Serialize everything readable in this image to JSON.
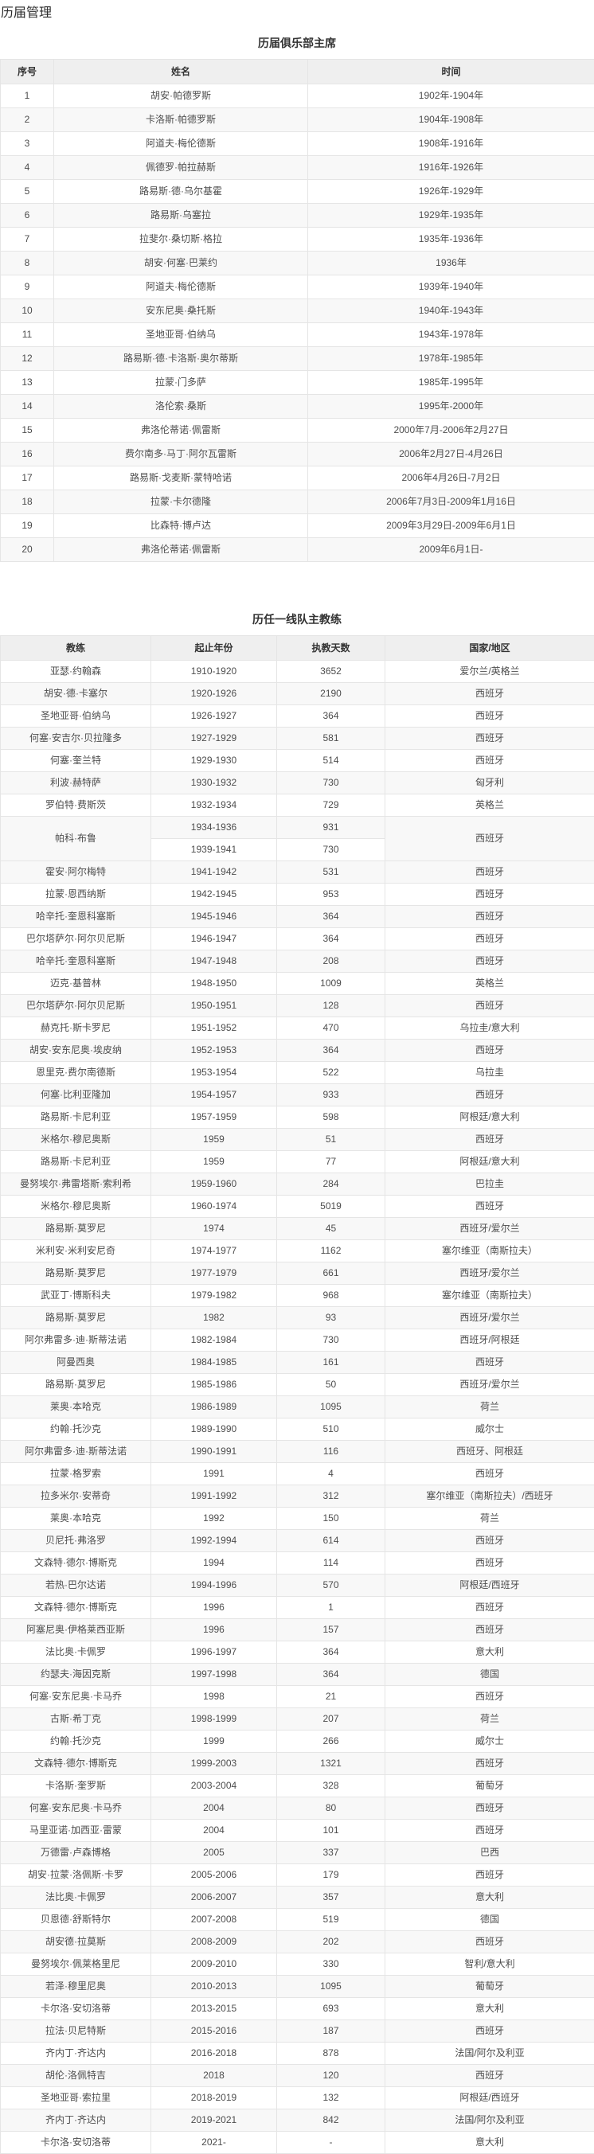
{
  "page_title": "历届管理",
  "presidents": {
    "caption": "历届俱乐部主席",
    "headers": [
      "序号",
      "姓名",
      "时间"
    ],
    "rows": [
      [
        "1",
        "胡安·帕德罗斯",
        "1902年-1904年"
      ],
      [
        "2",
        "卡洛斯·帕德罗斯",
        "1904年-1908年"
      ],
      [
        "3",
        "阿道夫·梅伦德斯",
        "1908年-1916年"
      ],
      [
        "4",
        "佩德罗·帕拉赫斯",
        "1916年-1926年"
      ],
      [
        "5",
        "路易斯·德·乌尔基霍",
        "1926年-1929年"
      ],
      [
        "6",
        "路易斯·乌塞拉",
        "1929年-1935年"
      ],
      [
        "7",
        "拉斐尔·桑切斯·格拉",
        "1935年-1936年"
      ],
      [
        "8",
        "胡安·何塞·巴莱约",
        "1936年"
      ],
      [
        "9",
        "阿道夫·梅伦德斯",
        "1939年-1940年"
      ],
      [
        "10",
        "安东尼奥·桑托斯",
        "1940年-1943年"
      ],
      [
        "11",
        "圣地亚哥·伯纳乌",
        "1943年-1978年"
      ],
      [
        "12",
        "路易斯·德·卡洛斯·奥尔蒂斯",
        "1978年-1985年"
      ],
      [
        "13",
        "拉蒙·门多萨",
        "1985年-1995年"
      ],
      [
        "14",
        "洛伦索·桑斯",
        "1995年-2000年"
      ],
      [
        "15",
        "弗洛伦蒂诺·佩雷斯",
        "2000年7月-2006年2月27日"
      ],
      [
        "16",
        "费尔南多·马丁·阿尔瓦雷斯",
        "2006年2月27日-4月26日"
      ],
      [
        "17",
        "路易斯·戈麦斯·蒙特哈诺",
        "2006年4月26日-7月2日"
      ],
      [
        "18",
        "拉蒙·卡尔德隆",
        "2006年7月3日-2009年1月16日"
      ],
      [
        "19",
        "比森特·博卢达",
        "2009年3月29日-2009年6月1日"
      ],
      [
        "20",
        "弗洛伦蒂诺·佩雷斯",
        "2009年6月1日-"
      ]
    ]
  },
  "coaches": {
    "caption": "历任一线队主教练",
    "headers": [
      "教练",
      "起止年份",
      "执教天数",
      "国家/地区"
    ],
    "rows": [
      {
        "name": "亚瑟·约翰森",
        "terms": [
          [
            "1910-1920",
            "3652"
          ]
        ],
        "country": "爱尔兰/英格兰"
      },
      {
        "name": "胡安·德·卡塞尔",
        "terms": [
          [
            "1920-1926",
            "2190"
          ]
        ],
        "country": "西班牙"
      },
      {
        "name": "圣地亚哥·伯纳乌",
        "terms": [
          [
            "1926-1927",
            "364"
          ]
        ],
        "country": "西班牙"
      },
      {
        "name": "何塞·安吉尔·贝拉隆多",
        "terms": [
          [
            "1927-1929",
            "581"
          ]
        ],
        "country": "西班牙"
      },
      {
        "name": "何塞·奎兰特",
        "terms": [
          [
            "1929-1930",
            "514"
          ]
        ],
        "country": "西班牙"
      },
      {
        "name": "利波·赫特萨",
        "terms": [
          [
            "1930-1932",
            "730"
          ]
        ],
        "country": "匈牙利"
      },
      {
        "name": "罗伯特·费斯茨",
        "terms": [
          [
            "1932-1934",
            "729"
          ]
        ],
        "country": "英格兰"
      },
      {
        "name": "帕科·布鲁",
        "terms": [
          [
            "1934-1936",
            "931"
          ],
          [
            "1939-1941",
            "730"
          ]
        ],
        "country": "西班牙"
      },
      {
        "name": "霍安·阿尔梅特",
        "terms": [
          [
            "1941-1942",
            "531"
          ]
        ],
        "country": "西班牙"
      },
      {
        "name": "拉蒙·恩西纳斯",
        "terms": [
          [
            "1942-1945",
            "953"
          ]
        ],
        "country": "西班牙"
      },
      {
        "name": "哈辛托·奎恩科塞斯",
        "terms": [
          [
            "1945-1946",
            "364"
          ]
        ],
        "country": "西班牙"
      },
      {
        "name": "巴尔塔萨尔·阿尔贝尼斯",
        "terms": [
          [
            "1946-1947",
            "364"
          ]
        ],
        "country": "西班牙"
      },
      {
        "name": "哈辛托·奎恩科塞斯",
        "terms": [
          [
            "1947-1948",
            "208"
          ]
        ],
        "country": "西班牙"
      },
      {
        "name": "迈克·基普林",
        "terms": [
          [
            "1948-1950",
            "1009"
          ]
        ],
        "country": "英格兰"
      },
      {
        "name": "巴尔塔萨尔·阿尔贝尼斯",
        "terms": [
          [
            "1950-1951",
            "128"
          ]
        ],
        "country": "西班牙"
      },
      {
        "name": "赫克托·斯卡罗尼",
        "terms": [
          [
            "1951-1952",
            "470"
          ]
        ],
        "country": "乌拉圭/意大利"
      },
      {
        "name": "胡安·安东尼奥·埃皮纳",
        "terms": [
          [
            "1952-1953",
            "364"
          ]
        ],
        "country": "西班牙"
      },
      {
        "name": "恩里克·费尔南德斯",
        "terms": [
          [
            "1953-1954",
            "522"
          ]
        ],
        "country": "乌拉圭"
      },
      {
        "name": "何塞·比利亚隆加",
        "terms": [
          [
            "1954-1957",
            "933"
          ]
        ],
        "country": "西班牙"
      },
      {
        "name": "路易斯·卡尼利亚",
        "terms": [
          [
            "1957-1959",
            "598"
          ]
        ],
        "country": "阿根廷/意大利"
      },
      {
        "name": "米格尔·穆尼奥斯",
        "terms": [
          [
            "1959",
            "51"
          ]
        ],
        "country": "西班牙"
      },
      {
        "name": "路易斯·卡尼利亚",
        "terms": [
          [
            "1959",
            "77"
          ]
        ],
        "country": "阿根廷/意大利"
      },
      {
        "name": "曼努埃尔·弗雷塔斯·索利希",
        "terms": [
          [
            "1959-1960",
            "284"
          ]
        ],
        "country": "巴拉圭"
      },
      {
        "name": "米格尔·穆尼奥斯",
        "terms": [
          [
            "1960-1974",
            "5019"
          ]
        ],
        "country": "西班牙"
      },
      {
        "name": "路易斯·莫罗尼",
        "terms": [
          [
            "1974",
            "45"
          ]
        ],
        "country": "西班牙/爱尔兰"
      },
      {
        "name": "米利安·米利安尼奇",
        "terms": [
          [
            "1974-1977",
            "1162"
          ]
        ],
        "country": "塞尔维亚（南斯拉夫）"
      },
      {
        "name": "路易斯·莫罗尼",
        "terms": [
          [
            "1977-1979",
            "661"
          ]
        ],
        "country": "西班牙/爱尔兰"
      },
      {
        "name": "武亚丁·博斯科夫",
        "terms": [
          [
            "1979-1982",
            "968"
          ]
        ],
        "country": "塞尔维亚（南斯拉夫）"
      },
      {
        "name": "路易斯·莫罗尼",
        "terms": [
          [
            "1982",
            "93"
          ]
        ],
        "country": "西班牙/爱尔兰"
      },
      {
        "name": "阿尔弗雷多·迪·斯蒂法诺",
        "terms": [
          [
            "1982-1984",
            "730"
          ]
        ],
        "country": "西班牙/阿根廷"
      },
      {
        "name": "阿曼西奥",
        "terms": [
          [
            "1984-1985",
            "161"
          ]
        ],
        "country": "西班牙"
      },
      {
        "name": "路易斯·莫罗尼",
        "terms": [
          [
            "1985-1986",
            "50"
          ]
        ],
        "country": "西班牙/爱尔兰"
      },
      {
        "name": "莱奥·本哈克",
        "terms": [
          [
            "1986-1989",
            "1095"
          ]
        ],
        "country": "荷兰"
      },
      {
        "name": "约翰·托沙克",
        "terms": [
          [
            "1989-1990",
            "510"
          ]
        ],
        "country": "威尔士"
      },
      {
        "name": "阿尔弗雷多·迪·斯蒂法诺",
        "terms": [
          [
            "1990-1991",
            "116"
          ]
        ],
        "country": "西班牙、阿根廷"
      },
      {
        "name": "拉蒙·格罗索",
        "terms": [
          [
            "1991",
            "4"
          ]
        ],
        "country": "西班牙"
      },
      {
        "name": "拉多米尔·安蒂奇",
        "terms": [
          [
            "1991-1992",
            "312"
          ]
        ],
        "country": "塞尔维亚（南斯拉夫）/西班牙"
      },
      {
        "name": "莱奥·本哈克",
        "terms": [
          [
            "1992",
            "150"
          ]
        ],
        "country": "荷兰"
      },
      {
        "name": "贝尼托·弗洛罗",
        "terms": [
          [
            "1992-1994",
            "614"
          ]
        ],
        "country": "西班牙"
      },
      {
        "name": "文森特·德尔·博斯克",
        "terms": [
          [
            "1994",
            "114"
          ]
        ],
        "country": "西班牙"
      },
      {
        "name": "若热·巴尔达诺",
        "terms": [
          [
            "1994-1996",
            "570"
          ]
        ],
        "country": "阿根廷/西班牙"
      },
      {
        "name": "文森特·德尔·博斯克",
        "terms": [
          [
            "1996",
            "1"
          ]
        ],
        "country": "西班牙"
      },
      {
        "name": "阿塞尼奥·伊格莱西亚斯",
        "terms": [
          [
            "1996",
            "157"
          ]
        ],
        "country": "西班牙"
      },
      {
        "name": "法比奥·卡佩罗",
        "terms": [
          [
            "1996-1997",
            "364"
          ]
        ],
        "country": "意大利"
      },
      {
        "name": "约瑟夫·海因克斯",
        "terms": [
          [
            "1997-1998",
            "364"
          ]
        ],
        "country": "德国"
      },
      {
        "name": "何塞·安东尼奥·卡马乔",
        "terms": [
          [
            "1998",
            "21"
          ]
        ],
        "country": "西班牙"
      },
      {
        "name": "古斯·希丁克",
        "terms": [
          [
            "1998-1999",
            "207"
          ]
        ],
        "country": "荷兰"
      },
      {
        "name": "约翰·托沙克",
        "terms": [
          [
            "1999",
            "266"
          ]
        ],
        "country": "威尔士"
      },
      {
        "name": "文森特·德尔·博斯克",
        "terms": [
          [
            "1999-2003",
            "1321"
          ]
        ],
        "country": "西班牙"
      },
      {
        "name": "卡洛斯·奎罗斯",
        "terms": [
          [
            "2003-2004",
            "328"
          ]
        ],
        "country": "葡萄牙"
      },
      {
        "name": "何塞·安东尼奥·卡马乔",
        "terms": [
          [
            "2004",
            "80"
          ]
        ],
        "country": "西班牙"
      },
      {
        "name": "马里亚诺·加西亚·雷蒙",
        "terms": [
          [
            "2004",
            "101"
          ]
        ],
        "country": "西班牙"
      },
      {
        "name": "万德雷·卢森博格",
        "terms": [
          [
            "2005",
            "337"
          ]
        ],
        "country": "巴西"
      },
      {
        "name": "胡安·拉蒙·洛佩斯·卡罗",
        "terms": [
          [
            "2005-2006",
            "179"
          ]
        ],
        "country": "西班牙"
      },
      {
        "name": "法比奥·卡佩罗",
        "terms": [
          [
            "2006-2007",
            "357"
          ]
        ],
        "country": "意大利"
      },
      {
        "name": "贝恩德·舒斯特尔",
        "terms": [
          [
            "2007-2008",
            "519"
          ]
        ],
        "country": "德国"
      },
      {
        "name": "胡安德·拉莫斯",
        "terms": [
          [
            "2008-2009",
            "202"
          ]
        ],
        "country": "西班牙"
      },
      {
        "name": "曼努埃尔·佩莱格里尼",
        "terms": [
          [
            "2009-2010",
            "330"
          ]
        ],
        "country": "智利/意大利"
      },
      {
        "name": "若泽·穆里尼奥",
        "terms": [
          [
            "2010-2013",
            "1095"
          ]
        ],
        "country": "葡萄牙"
      },
      {
        "name": "卡尔洛·安切洛蒂",
        "terms": [
          [
            "2013-2015",
            "693"
          ]
        ],
        "country": "意大利"
      },
      {
        "name": "拉法·贝尼特斯",
        "terms": [
          [
            "2015-2016",
            "187"
          ]
        ],
        "country": "西班牙"
      },
      {
        "name": "齐内丁·齐达内",
        "terms": [
          [
            "2016-2018",
            "878"
          ]
        ],
        "country": "法国/阿尔及利亚"
      },
      {
        "name": "胡伦·洛佩特吉",
        "terms": [
          [
            "2018",
            "120"
          ]
        ],
        "country": "西班牙"
      },
      {
        "name": "圣地亚哥·索拉里",
        "terms": [
          [
            "2018-2019",
            "132"
          ]
        ],
        "country": "阿根廷/西班牙"
      },
      {
        "name": "齐内丁·齐达内",
        "terms": [
          [
            "2019-2021",
            "842"
          ]
        ],
        "country": "法国/阿尔及利亚"
      },
      {
        "name": "卡尔洛·安切洛蒂",
        "terms": [
          [
            "2021-",
            "-"
          ]
        ],
        "country": "意大利"
      }
    ]
  }
}
